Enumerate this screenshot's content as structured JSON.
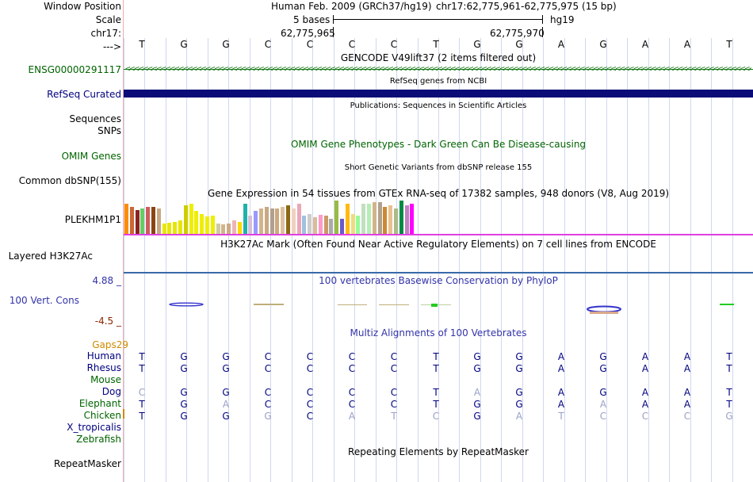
{
  "header": {
    "window_position_label": "Window Position",
    "scale_label": "Scale",
    "chrom_label": "chr17:",
    "arrow_label": "--->",
    "assembly": "Human Feb. 2009 (GRCh37/hg19)",
    "position": "chr17:62,775,961-62,775,975 (15 bp)",
    "scale_text": "5 bases",
    "scale_db": "hg19",
    "coord_left": "62,775,965",
    "coord_right": "62,775,970"
  },
  "sequence": [
    "T",
    "G",
    "G",
    "C",
    "C",
    "C",
    "C",
    "T",
    "G",
    "G",
    "A",
    "G",
    "A",
    "A",
    "T"
  ],
  "tracks": {
    "gencode": {
      "title": "GENCODE V49lift37 (2 items filtered out)",
      "label": "ENSG00000291117"
    },
    "refseq": {
      "title": "RefSeq genes from NCBI",
      "label": "RefSeq Curated"
    },
    "publications": {
      "title": "Publications: Sequences in Scientific Articles",
      "label1": "Sequences",
      "label2": "SNPs"
    },
    "omim": {
      "title": "OMIM Gene Phenotypes - Dark Green Can Be Disease-causing",
      "label": "OMIM Genes"
    },
    "dbsnp": {
      "title": "Short Genetic Variants from dbSNP release 155",
      "label": "Common dbSNP(155)"
    },
    "gtex": {
      "title": "Gene Expression in 54 tissues from GTEx RNA-seq of 17382 samples, 948 donors (V8, Aug 2019)",
      "label": "PLEKHM1P1"
    },
    "h3k27ac": {
      "title": "H3K27Ac Mark (Often Found Near Active Regulatory Elements) on 7 cell lines from ENCODE",
      "label": "Layered H3K27Ac"
    },
    "phylop": {
      "title": "100 vertebrates Basewise Conservation by PhyloP",
      "label": "100 Vert. Cons",
      "max": "4.88 _",
      "min": "-4.5 _"
    },
    "multiz": {
      "title": "Multiz Alignments of 100 Vertebrates",
      "gaps_label": "Gaps",
      "gaps_value": "29"
    },
    "repeatmasker": {
      "title": "Repeating Elements by RepeatMasker",
      "label": "RepeatMasker"
    }
  },
  "species": [
    {
      "name": "Human",
      "bases": [
        "T",
        "G",
        "G",
        "C",
        "C",
        "C",
        "C",
        "T",
        "G",
        "G",
        "A",
        "G",
        "A",
        "A",
        "T"
      ],
      "faint": []
    },
    {
      "name": "Rhesus",
      "bases": [
        "T",
        "G",
        "G",
        "C",
        "C",
        "C",
        "C",
        "T",
        "G",
        "G",
        "A",
        "G",
        "A",
        "A",
        "T"
      ],
      "faint": []
    },
    {
      "name": "Mouse",
      "bases": [],
      "faint": []
    },
    {
      "name": "Dog",
      "bases": [
        "C",
        "G",
        "G",
        "C",
        "C",
        "C",
        "C",
        "T",
        "A",
        "G",
        "A",
        "G",
        "A",
        "A",
        "T"
      ],
      "faint": [
        0,
        8
      ]
    },
    {
      "name": "Elephant",
      "bases": [
        "T",
        "G",
        "A",
        "C",
        "C",
        "C",
        "C",
        "T",
        "G",
        "G",
        "A",
        "A",
        "A",
        "A",
        "T"
      ],
      "faint": [
        2,
        11
      ]
    },
    {
      "name": "Chicken",
      "bases": [
        "T",
        "G",
        "G",
        "G",
        "C",
        "A",
        "T",
        "C",
        "G",
        "A",
        "T",
        "C",
        "C",
        "C",
        "G"
      ],
      "faint": [
        3,
        5,
        6,
        7,
        9,
        10,
        11,
        12,
        13,
        14
      ]
    },
    {
      "name": "X_tropicalis",
      "bases": [],
      "faint": []
    },
    {
      "name": "Zebrafish",
      "bases": [],
      "faint": []
    }
  ],
  "gtex_values": [
    0.9,
    0.8,
    0.72,
    0.75,
    0.8,
    0.8,
    0.76,
    0.3,
    0.33,
    0.35,
    0.4,
    0.85,
    0.9,
    0.7,
    0.6,
    0.52,
    0.55,
    0.3,
    0.28,
    0.3,
    0.4,
    0.35,
    0.9,
    0.55,
    0.7,
    0.75,
    0.8,
    0.75,
    0.77,
    0.82,
    0.85,
    0.75,
    0.9,
    0.55,
    0.6,
    0.5,
    0.57,
    0.55,
    0.45,
    1.0,
    0.45,
    0.9,
    0.6,
    0.55,
    0.9,
    0.9,
    0.95,
    0.95,
    0.8,
    0.85,
    0.75,
    1.0,
    0.85,
    0.9
  ],
  "colors": {
    "accent_navy": "#000080",
    "label_green": "#006400",
    "label_blue": "#000080",
    "omim_green": "#006400",
    "phylop_blue": "#3333aa",
    "phylop_min": "#8b2500",
    "gaps_orange": "#d08a00",
    "refseq_bar": "#0c0c78",
    "gencode_green": "#1a7a1a",
    "gtex_pink": "#e040e0",
    "h3k27ac_blue": "#3a6aa8",
    "gtex_palette": [
      "#ff8c00",
      "#cc6633",
      "#8b2323",
      "#66cc66",
      "#cd5c5c",
      "#8b4513",
      "#c8a882",
      "#e6e600",
      "#e6e600",
      "#e6e600",
      "#e6e600",
      "#cdcd00",
      "#eeee00",
      "#eeee00",
      "#eeee00",
      "#eeee00",
      "#eeee00",
      "#cdc9a5",
      "#d2b48c",
      "#ccaa88",
      "#eeb4b4",
      "#ffd700",
      "#20b2aa",
      "#d8bfd8",
      "#9999ff",
      "#d2b48c",
      "#c8a882",
      "#b0a090",
      "#cdaa7d",
      "#e0c0a0",
      "#8b6914",
      "#f0d0c0",
      "#e8a8b8",
      "#a0c0e0",
      "#cccccc",
      "#ddbb99",
      "#ff99cc",
      "#cc9966",
      "#aaaaaa",
      "#99bb44",
      "#6a5acd",
      "#ffb90f",
      "#eedc82",
      "#98fb98",
      "#c0e0c0",
      "#b4eeb4",
      "#d2b48c",
      "#b0a090",
      "#cc8833",
      "#e8c090",
      "#aabb88",
      "#008b45",
      "#c080c0",
      "#ff00ff"
    ]
  }
}
